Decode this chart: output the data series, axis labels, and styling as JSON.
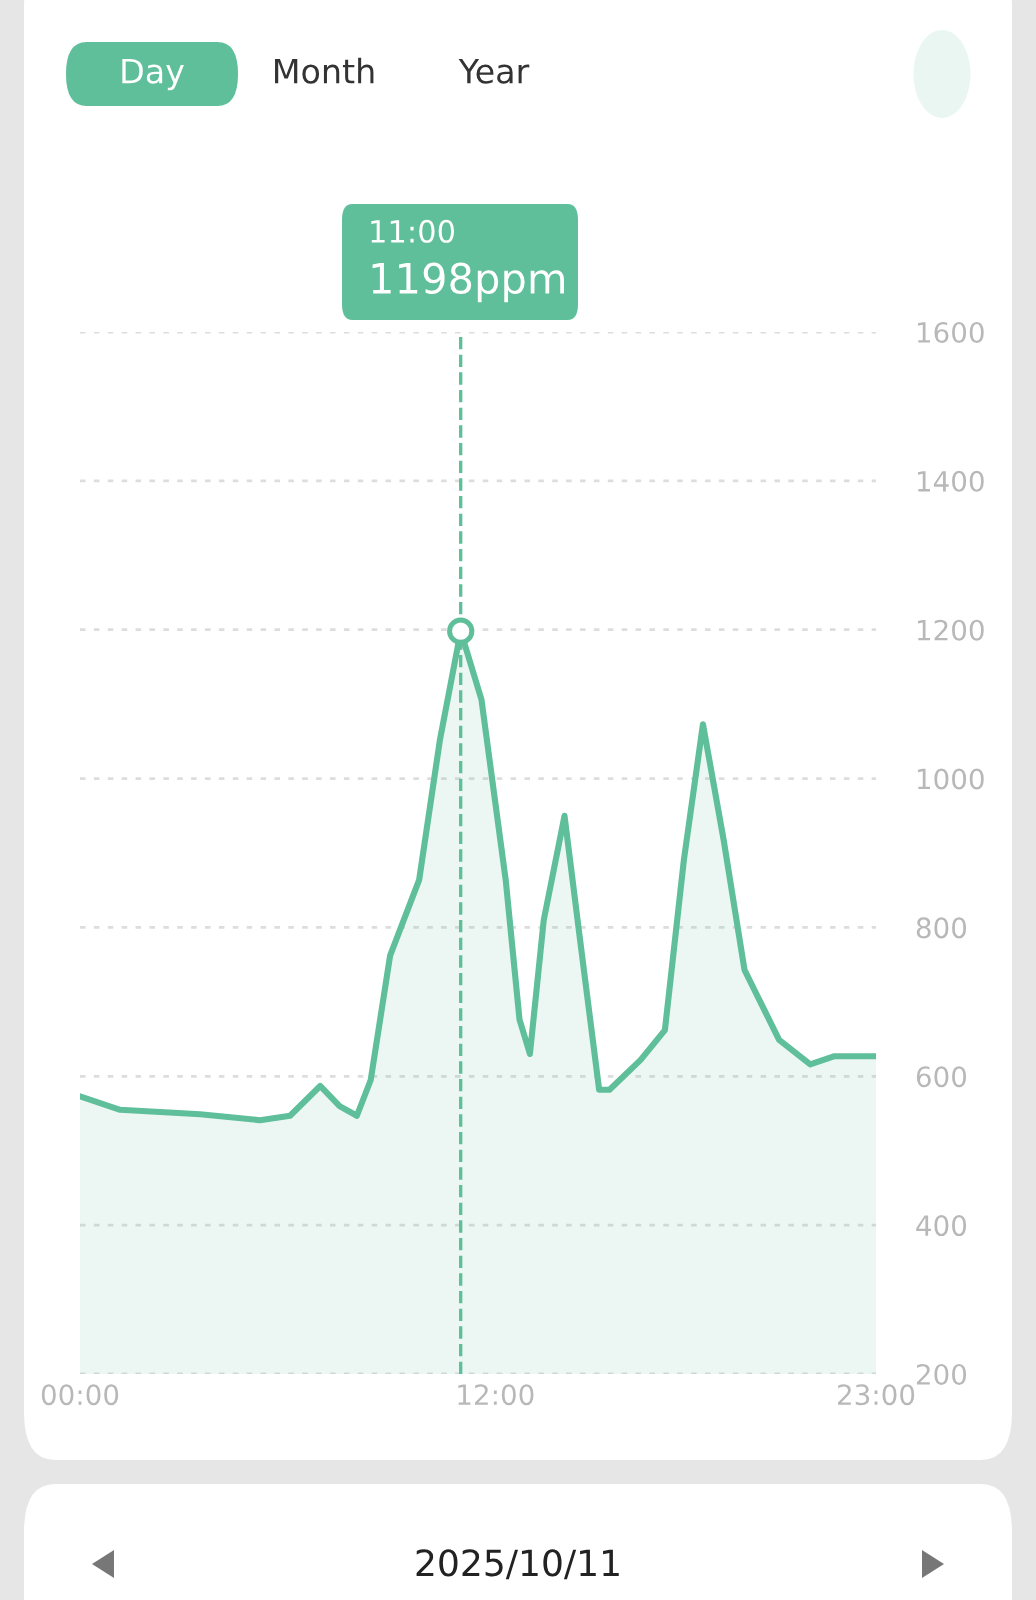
{
  "chart_data": {
    "type": "area",
    "x": [
      0,
      1.16,
      3.47,
      5.2,
      6.07,
      6.94,
      7.5,
      8,
      8.4,
      8.96,
      9.8,
      10.4,
      11,
      11.6,
      12.3,
      12.7,
      13,
      13.4,
      14,
      14.45,
      15,
      15.3,
      16.2,
      16.9,
      17.45,
      18,
      18.6,
      19.2,
      20.2,
      21.1,
      21.8,
      23
    ],
    "series": [
      {
        "color": "#5fbf9a",
        "values": [
          573,
          555,
          549,
          541,
          547,
          587,
          560,
          547,
          595,
          762,
          864,
          1052,
          1198,
          1106,
          864,
          676,
          630,
          810,
          950,
          783,
          582,
          582,
          622,
          662,
          891,
          1073,
          917,
          743,
          649,
          616,
          627,
          627
        ]
      }
    ],
    "xlim": [
      0,
      23
    ],
    "xticks": [
      {
        "value": 0,
        "label": "00:00"
      },
      {
        "value": 12,
        "label": "12:00"
      },
      {
        "value": 23,
        "label": "23:00"
      }
    ],
    "ylim": [
      200,
      1600
    ],
    "yticks": [
      200,
      400,
      600,
      800,
      1000,
      1200,
      1400,
      1600
    ],
    "grid": "y",
    "marker": "none",
    "line_style": "solid",
    "ref_lines": [
      {
        "axis": "x",
        "value": 11,
        "label": null,
        "color": "#5fbf9a",
        "line_style": "dashed"
      }
    ],
    "annotations": [
      "Day",
      "Month",
      "Year",
      "2025/10/11",
      "11:00",
      "1198ppm"
    ]
  }
}
